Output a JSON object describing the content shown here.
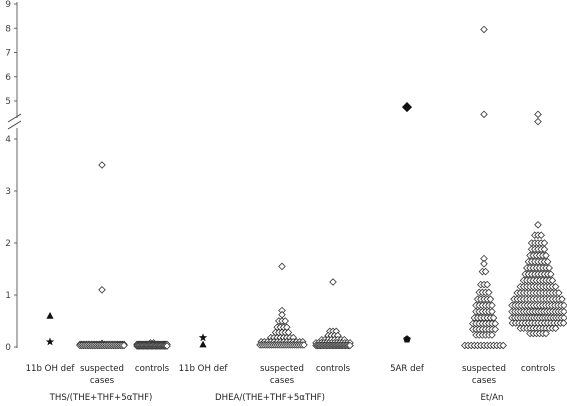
{
  "chart_data": {
    "type": "scatter",
    "y_axis": {
      "lower_segment": {
        "ylim": [
          0,
          4
        ],
        "ticks": [
          "0",
          "1",
          "2",
          "3",
          "4"
        ]
      },
      "upper_segment": {
        "ylim": [
          4.5,
          9
        ],
        "ticks": [
          "5",
          "6",
          "7",
          "8",
          "9"
        ]
      },
      "axis_break": true
    },
    "groups": [
      {
        "label": "THS/(THE+THF+5αTHF)",
        "categories": [
          {
            "label": "11b OH def",
            "points": [
              {
                "marker": "triangle",
                "y": 0.6
              },
              {
                "marker": "star",
                "y": 0.1
              }
            ]
          },
          {
            "label": "suspected cases",
            "points": [
              {
                "marker": "diamond-open",
                "y": 3.5
              },
              {
                "marker": "diamond-open",
                "y": 1.1
              },
              {
                "marker": "diamond-open",
                "y": 0.07
              },
              {
                "marker": "diamond-open",
                "y": 0.05,
                "count": 28
              },
              {
                "marker": "diamond-open",
                "y": 0.03,
                "count": 26
              }
            ]
          },
          {
            "label": "controls",
            "points": [
              {
                "marker": "diamond-open",
                "y": 0.08,
                "count": 2
              },
              {
                "marker": "diamond-open",
                "y": 0.05,
                "count": 26
              },
              {
                "marker": "diamond-open",
                "y": 0.02,
                "count": 24
              }
            ]
          }
        ]
      },
      {
        "label": "DHEA/(THE+THF+5αTHF)",
        "categories": [
          {
            "label": "11b OH def",
            "points": [
              {
                "marker": "star",
                "y": 0.18
              },
              {
                "marker": "triangle",
                "y": 0.05
              }
            ]
          },
          {
            "label": "suspected cases",
            "points": [
              {
                "marker": "diamond-open",
                "y": 1.55
              },
              {
                "marker": "diamond-open",
                "y": 0.7
              },
              {
                "marker": "diamond-open",
                "y": 0.62
              },
              {
                "marker": "diamond-open",
                "y": 0.5,
                "count": 3
              },
              {
                "marker": "diamond-open",
                "y": 0.38,
                "count": 4
              },
              {
                "marker": "diamond-open",
                "y": 0.28,
                "count": 5
              },
              {
                "marker": "diamond-open",
                "y": 0.18,
                "count": 8
              },
              {
                "marker": "diamond-open",
                "y": 0.1,
                "count": 14
              },
              {
                "marker": "diamond-open",
                "y": 0.04,
                "count": 24
              }
            ]
          },
          {
            "label": "controls",
            "points": [
              {
                "marker": "diamond-open",
                "y": 1.25
              },
              {
                "marker": "diamond-open",
                "y": 0.3,
                "count": 3
              },
              {
                "marker": "diamond-open",
                "y": 0.22,
                "count": 4
              },
              {
                "marker": "diamond-open",
                "y": 0.14,
                "count": 8
              },
              {
                "marker": "diamond-open",
                "y": 0.08,
                "count": 14
              },
              {
                "marker": "diamond-open",
                "y": 0.03,
                "count": 24
              }
            ]
          }
        ]
      },
      {
        "label": "Et/An",
        "categories": [
          {
            "label": "5AR def",
            "points": [
              {
                "marker": "diamond-filled",
                "y": 4.75
              },
              {
                "marker": "pentagon-filled",
                "y": 0.15
              }
            ]
          },
          {
            "label": "suspected cases",
            "points": [
              {
                "marker": "diamond-open",
                "y": 7.95
              },
              {
                "marker": "diamond-open",
                "y": 4.45
              },
              {
                "marker": "diamond-open",
                "y": 1.7
              },
              {
                "marker": "diamond-open",
                "y": 1.6
              },
              {
                "marker": "diamond-open",
                "y": 1.45,
                "count": 2
              },
              {
                "marker": "diamond-open",
                "y": 1.2,
                "count": 3
              },
              {
                "marker": "diamond-open",
                "y": 1.05,
                "count": 4
              },
              {
                "marker": "diamond-open",
                "y": 0.92,
                "count": 5
              },
              {
                "marker": "diamond-open",
                "y": 0.8,
                "count": 6
              },
              {
                "marker": "diamond-open",
                "y": 0.68,
                "count": 6
              },
              {
                "marker": "diamond-open",
                "y": 0.56,
                "count": 7
              },
              {
                "marker": "diamond-open",
                "y": 0.45,
                "count": 8
              },
              {
                "marker": "diamond-open",
                "y": 0.34,
                "count": 8
              },
              {
                "marker": "diamond-open",
                "y": 0.23,
                "count": 6
              },
              {
                "marker": "diamond-open",
                "y": 0.03,
                "count": 13
              }
            ]
          },
          {
            "label": "controls",
            "points": [
              {
                "marker": "diamond-open",
                "y": 4.45
              },
              {
                "marker": "diamond-open",
                "y": 4.15
              },
              {
                "marker": "diamond-open",
                "y": 2.35
              },
              {
                "marker": "diamond-open",
                "y": 2.15,
                "count": 3
              },
              {
                "marker": "diamond-open",
                "y": 2.0,
                "count": 5
              },
              {
                "marker": "diamond-open",
                "y": 1.88,
                "count": 5
              },
              {
                "marker": "diamond-open",
                "y": 1.76,
                "count": 6
              },
              {
                "marker": "diamond-open",
                "y": 1.64,
                "count": 7
              },
              {
                "marker": "diamond-open",
                "y": 1.52,
                "count": 8
              },
              {
                "marker": "diamond-open",
                "y": 1.4,
                "count": 9
              },
              {
                "marker": "diamond-open",
                "y": 1.28,
                "count": 10
              },
              {
                "marker": "diamond-open",
                "y": 1.16,
                "count": 12
              },
              {
                "marker": "diamond-open",
                "y": 1.04,
                "count": 14
              },
              {
                "marker": "diamond-open",
                "y": 0.92,
                "count": 16
              },
              {
                "marker": "diamond-open",
                "y": 0.8,
                "count": 18
              },
              {
                "marker": "diamond-open",
                "y": 0.68,
                "count": 19
              },
              {
                "marker": "diamond-open",
                "y": 0.56,
                "count": 20
              },
              {
                "marker": "diamond-open",
                "y": 0.46,
                "count": 17
              },
              {
                "marker": "diamond-open",
                "y": 0.36,
                "count": 12
              },
              {
                "marker": "diamond-open",
                "y": 0.26,
                "count": 6
              }
            ]
          }
        ]
      }
    ]
  }
}
